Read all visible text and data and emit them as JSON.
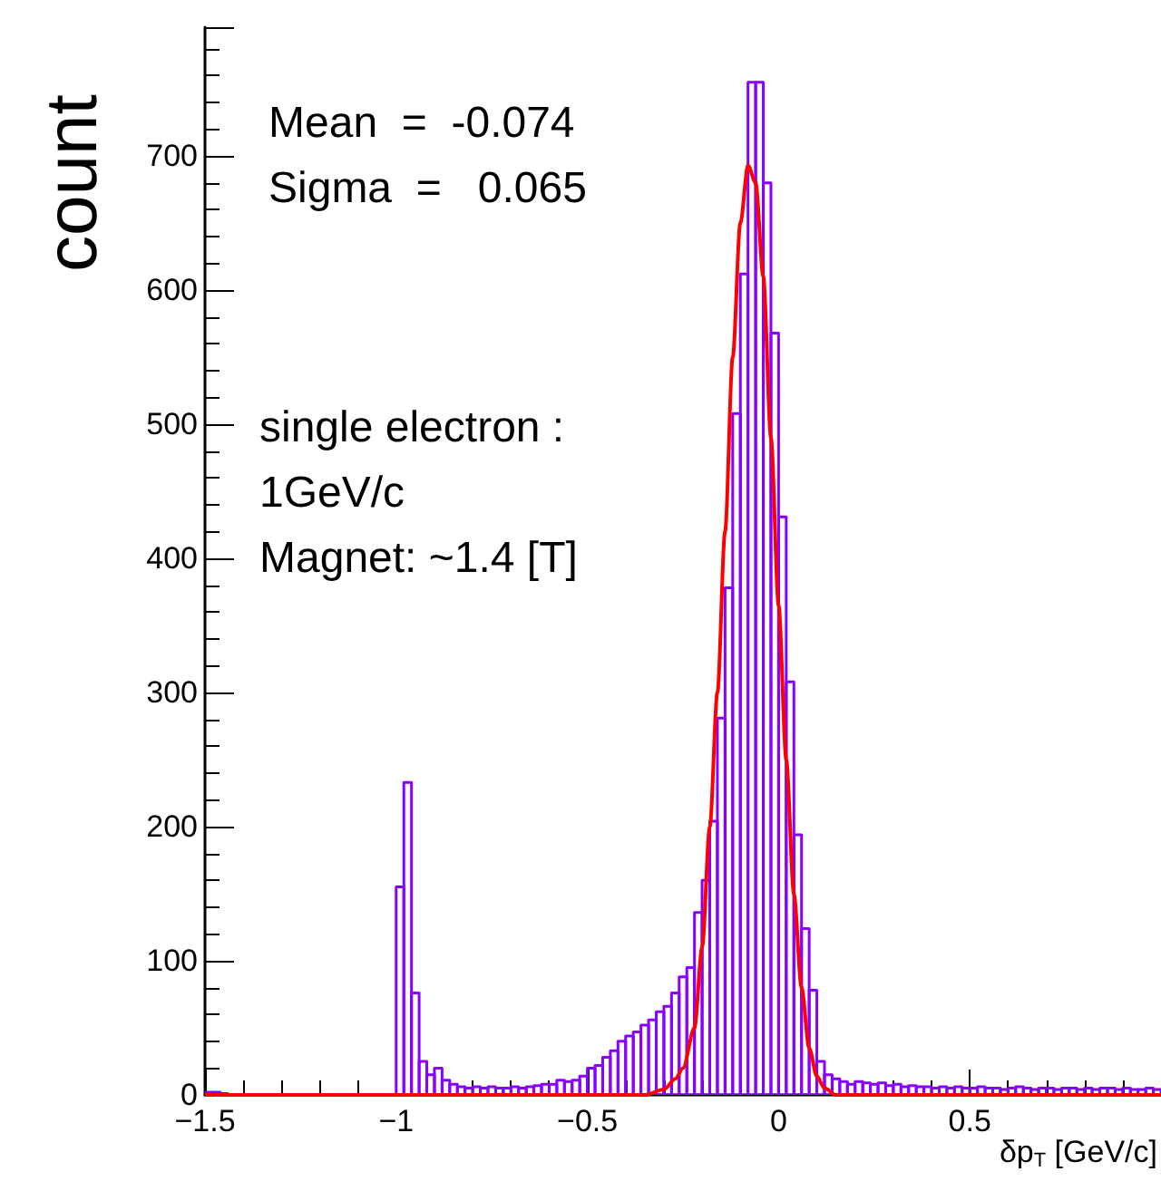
{
  "chart_data": {
    "type": "histogram",
    "xlabel": "δp$_{T}$ [GeV/c]",
    "ylabel": "count",
    "annotations": [
      "Mean  =  -0.074",
      "Sigma  =   0.065",
      "single electron :",
      "1GeV/c",
      "Magnet: ~1.4 [T]"
    ],
    "bins": [
      -1.5,
      -1.48,
      -1.46,
      -1.44,
      -1.42,
      -1.4,
      -1.38,
      -1.36,
      -1.34,
      -1.32,
      -1.3,
      -1.28,
      -1.26,
      -1.24,
      -1.22,
      -1.2,
      -1.18,
      -1.16,
      -1.14,
      -1.12,
      -1.1,
      -1.08,
      -1.06,
      -1.04,
      -1.02,
      -1,
      -0.98,
      -0.96,
      -0.94,
      -0.92,
      -0.9,
      -0.88,
      -0.86,
      -0.84,
      -0.82,
      -0.8,
      -0.78,
      -0.76,
      -0.74,
      -0.72,
      -0.7,
      -0.68,
      -0.66,
      -0.64,
      -0.62,
      -0.6,
      -0.58,
      -0.56,
      -0.54,
      -0.52,
      -0.5,
      -0.48,
      -0.46,
      -0.44,
      -0.42,
      -0.4,
      -0.38,
      -0.36,
      -0.34,
      -0.32,
      -0.3,
      -0.28,
      -0.26,
      -0.24,
      -0.22,
      -0.2,
      -0.18,
      -0.16,
      -0.14,
      -0.12,
      -0.1,
      -0.08,
      -0.06,
      -0.04,
      -0.02,
      0,
      0.02,
      0.04,
      0.06,
      0.08,
      0.1,
      0.12,
      0.14,
      0.16,
      0.18,
      0.2,
      0.22,
      0.24,
      0.26,
      0.28,
      0.3,
      0.32,
      0.34,
      0.36,
      0.38,
      0.4,
      0.42,
      0.44,
      0.46,
      0.48,
      0.5,
      0.52,
      0.54,
      0.56,
      0.58,
      0.6,
      0.62,
      0.64,
      0.66,
      0.68,
      0.7,
      0.72,
      0.74,
      0.76,
      0.78,
      0.8,
      0.82,
      0.84,
      0.86,
      0.88,
      0.9,
      0.92,
      0.94,
      0.96,
      0.98,
      1
    ],
    "series": [
      {
        "color": "#8800ff",
        "values": [
          2,
          2,
          1,
          0,
          0,
          0,
          0,
          0,
          0,
          0,
          0,
          0,
          0,
          0,
          0,
          0,
          0,
          0,
          0,
          0,
          0,
          0,
          0,
          0,
          0,
          155,
          233,
          76,
          25,
          15,
          20,
          11,
          8,
          6,
          5,
          6,
          5,
          6,
          5,
          5,
          6,
          5,
          6,
          7,
          8,
          8,
          11,
          10,
          11,
          14,
          20,
          22,
          28,
          33,
          40,
          44,
          47,
          52,
          56,
          62,
          66,
          76,
          88,
          95,
          136,
          160,
          204,
          281,
          378,
          508,
          612,
          755,
          755,
          680,
          568,
          431,
          308,
          194,
          124,
          78,
          25,
          15,
          12,
          10,
          8,
          10,
          9,
          8,
          9,
          7,
          8,
          6,
          7,
          6,
          6,
          5,
          6,
          5,
          6,
          5,
          5,
          6,
          5,
          5,
          4,
          5,
          6,
          5,
          4,
          5,
          5,
          4,
          5,
          5,
          4,
          5,
          4,
          5,
          5,
          4,
          5,
          4,
          4,
          5,
          4
        ]
      },
      {
        "type": "line",
        "color": "#ff0000",
        "x": [
          -1.5,
          -0.35,
          -0.3,
          -0.27,
          -0.25,
          -0.22,
          -0.2,
          -0.18,
          -0.16,
          -0.14,
          -0.12,
          -0.1,
          -0.08,
          -0.06,
          -0.04,
          -0.02,
          0,
          0.02,
          0.04,
          0.06,
          0.08,
          0.1,
          0.12,
          0.15,
          1
        ],
        "values": [
          0,
          0,
          4,
          12,
          20,
          50,
          110,
          200,
          300,
          420,
          550,
          650,
          693,
          680,
          610,
          490,
          365,
          250,
          150,
          80,
          35,
          14,
          5,
          0,
          0
        ]
      }
    ],
    "xlim": [
      -1.5,
      1
    ],
    "xticks": [
      {
        "value": -1.5,
        "label": "−1.5"
      },
      {
        "value": -1,
        "label": "−1"
      },
      {
        "value": -0.5,
        "label": "−0.5"
      },
      0,
      0.5
    ],
    "ylim": [
      0,
      796
    ],
    "yticks": [
      0,
      100,
      200,
      300,
      400,
      500,
      600,
      700
    ],
    "grid": false,
    "marker": "none"
  }
}
